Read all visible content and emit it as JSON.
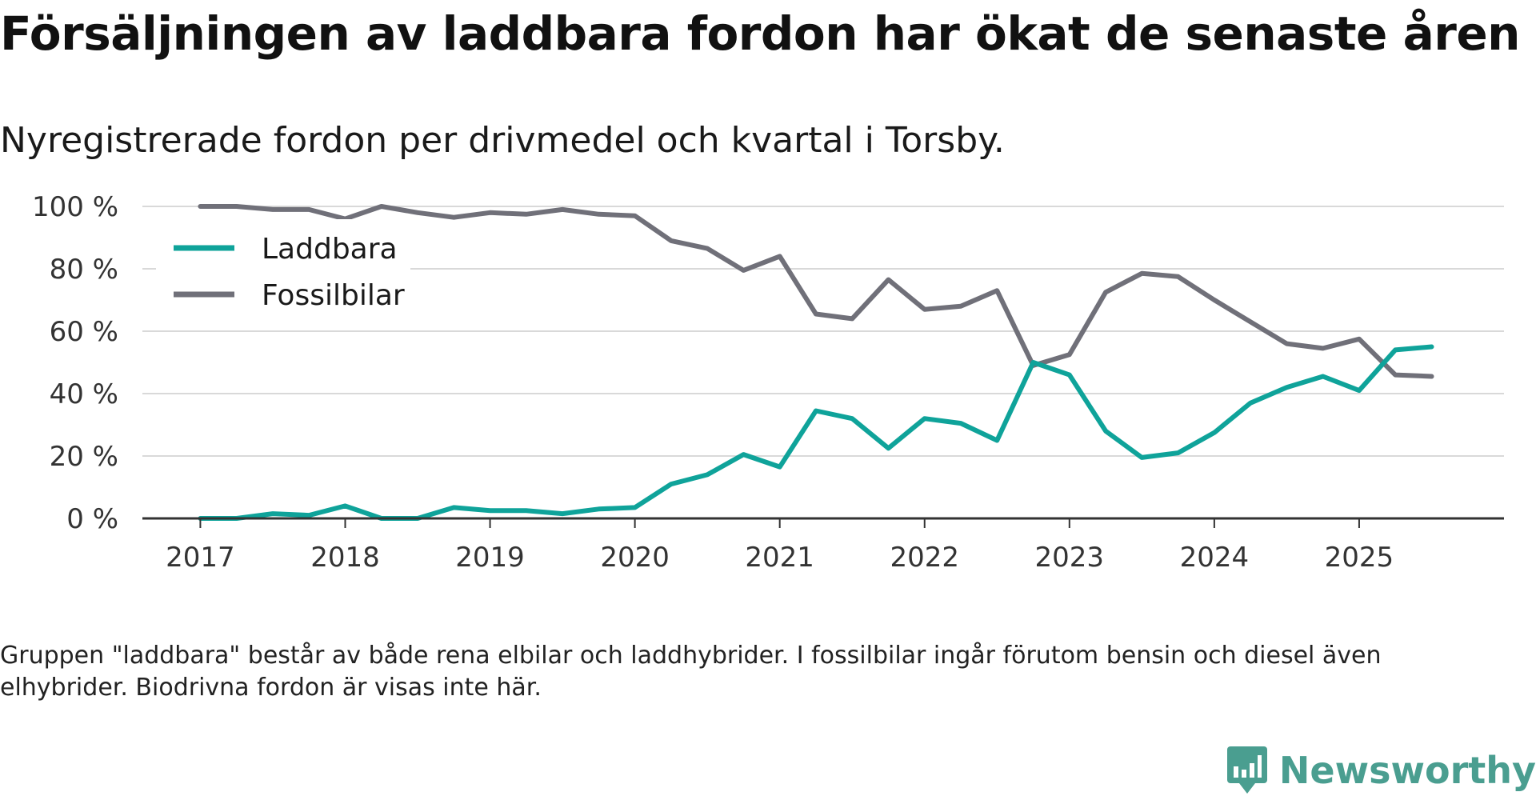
{
  "title": "Försäljningen av laddbara fordon har ökat de senaste åren",
  "subtitle": "Nyregistrerade fordon per drivmedel och kvartal i Torsby.",
  "footnote": "Gruppen \"laddbara\" består av både rena elbilar och laddhybrider. I fossilbilar ingår förutom bensin och diesel även elhybrider. Biodrivna fordon är visas inte här.",
  "brand": {
    "name": "Newsworthy",
    "color": "#4a9e90"
  },
  "chart_data": {
    "type": "line",
    "title": "Försäljningen av laddbara fordon har ökat de senaste åren",
    "xlabel": "",
    "ylabel": "",
    "ylim": [
      0,
      100
    ],
    "xlim": [
      2016.6,
      2026.0
    ],
    "grid": true,
    "legend_position": "top-left",
    "y_ticks": [
      0,
      20,
      40,
      60,
      80,
      100
    ],
    "y_tick_labels": [
      "0 %",
      "20 %",
      "40 %",
      "60 %",
      "80 %",
      "100 %"
    ],
    "x_ticks": [
      2017,
      2018,
      2019,
      2020,
      2021,
      2022,
      2023,
      2024,
      2025
    ],
    "x_tick_labels": [
      "2017",
      "2018",
      "2019",
      "2020",
      "2021",
      "2022",
      "2023",
      "2024",
      "2025"
    ],
    "x": [
      2017.0,
      2017.25,
      2017.5,
      2017.75,
      2018.0,
      2018.25,
      2018.5,
      2018.75,
      2019.0,
      2019.25,
      2019.5,
      2019.75,
      2020.0,
      2020.25,
      2020.5,
      2020.75,
      2021.0,
      2021.25,
      2021.5,
      2021.75,
      2022.0,
      2022.25,
      2022.5,
      2022.75,
      2023.0,
      2023.25,
      2023.5,
      2023.75,
      2024.0,
      2024.25,
      2024.5,
      2024.75,
      2025.0,
      2025.25,
      2025.5
    ],
    "series": [
      {
        "name": "Laddbara",
        "color": "#0fa39a",
        "values": [
          0,
          0,
          1.5,
          1,
          4,
          0,
          0,
          3.5,
          2.5,
          2.5,
          1.5,
          3,
          3.5,
          11,
          14,
          20.5,
          16.5,
          34.5,
          32,
          22.5,
          32,
          30.5,
          25,
          50,
          46,
          28,
          19.5,
          21,
          27.5,
          37,
          42,
          45.5,
          41,
          54,
          55
        ]
      },
      {
        "name": "Fossilbilar",
        "color": "#707079",
        "values": [
          100,
          100,
          99,
          99,
          96,
          100,
          98,
          96.5,
          98,
          97.5,
          99,
          97.5,
          97,
          89,
          86.5,
          79.5,
          84,
          65.5,
          64,
          76.5,
          67,
          68,
          73,
          49,
          52.5,
          72.5,
          78.5,
          77.5,
          70,
          63,
          56,
          54.5,
          57.5,
          46,
          45.5
        ]
      }
    ]
  }
}
